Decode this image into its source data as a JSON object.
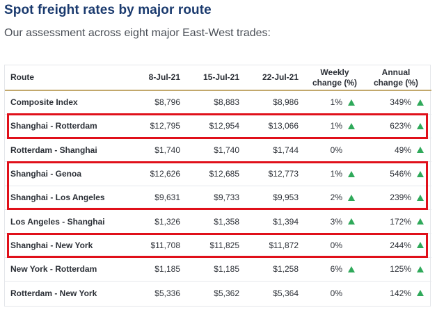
{
  "header": {
    "title": "Spot freight rates by major route",
    "subtitle": "Our assessment across eight major East-West trades:"
  },
  "table": {
    "columns": [
      "Route",
      "8-Jul-21",
      "15-Jul-21",
      "22-Jul-21",
      "Weekly change (%)",
      "Annual change (%)"
    ],
    "rows": [
      {
        "route": "Composite Index",
        "jul8": "$8,796",
        "jul15": "$8,883",
        "jul22": "$8,986",
        "weekly": "1%",
        "weekly_up": true,
        "annual": "349%",
        "annual_up": true,
        "highlighted": false
      },
      {
        "route": "Shanghai - Rotterdam",
        "jul8": "$12,795",
        "jul15": "$12,954",
        "jul22": "$13,066",
        "weekly": "1%",
        "weekly_up": true,
        "annual": "623%",
        "annual_up": true,
        "highlighted": true
      },
      {
        "route": "Rotterdam - Shanghai",
        "jul8": "$1,740",
        "jul15": "$1,740",
        "jul22": "$1,744",
        "weekly": "0%",
        "weekly_up": false,
        "annual": "49%",
        "annual_up": true,
        "highlighted": false
      },
      {
        "route": "Shanghai - Genoa",
        "jul8": "$12,626",
        "jul15": "$12,685",
        "jul22": "$12,773",
        "weekly": "1%",
        "weekly_up": true,
        "annual": "546%",
        "annual_up": true,
        "highlighted": true
      },
      {
        "route": "Shanghai - Los Angeles",
        "jul8": "$9,631",
        "jul15": "$9,733",
        "jul22": "$9,953",
        "weekly": "2%",
        "weekly_up": true,
        "annual": "239%",
        "annual_up": true,
        "highlighted": true
      },
      {
        "route": "Los Angeles - Shanghai",
        "jul8": "$1,326",
        "jul15": "$1,358",
        "jul22": "$1,394",
        "weekly": "3%",
        "weekly_up": true,
        "annual": "172%",
        "annual_up": true,
        "highlighted": false
      },
      {
        "route": "Shanghai - New York",
        "jul8": "$11,708",
        "jul15": "$11,825",
        "jul22": "$11,872",
        "weekly": "0%",
        "weekly_up": false,
        "annual": "244%",
        "annual_up": true,
        "highlighted": true
      },
      {
        "route": "New York - Rotterdam",
        "jul8": "$1,185",
        "jul15": "$1,185",
        "jul22": "$1,258",
        "weekly": "6%",
        "weekly_up": true,
        "annual": "125%",
        "annual_up": true,
        "highlighted": false
      },
      {
        "route": "Rotterdam - New York",
        "jul8": "$5,336",
        "jul15": "$5,362",
        "jul22": "$5,364",
        "weekly": "0%",
        "weekly_up": false,
        "annual": "142%",
        "annual_up": true,
        "highlighted": false
      }
    ]
  },
  "icons": {
    "increase": "up-triangle-icon"
  },
  "colors": {
    "title": "#1a3a6e",
    "increase": "#2fa95a",
    "highlight": "#e0101a",
    "header_rule": "#c2a86c"
  }
}
